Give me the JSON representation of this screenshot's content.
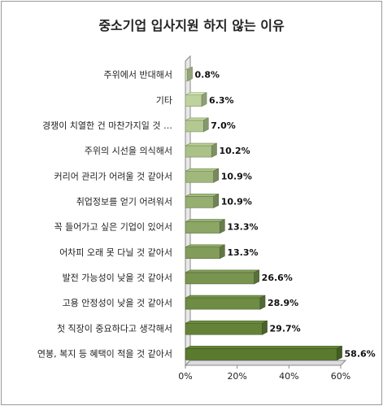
{
  "chart_data": {
    "type": "bar",
    "orientation": "horizontal",
    "title": "중소기업 입사지원 하지 않는 이유",
    "categories": [
      "주위에서 반대해서",
      "기타",
      "경쟁이 치열한 건 마찬가지일 것 …",
      "주위의 시선을 의식해서",
      "커리어 관리가 어려울 것 같아서",
      "취업정보를 얻기 어려워서",
      "꼭 들어가고 싶은 기업이 있어서",
      "어차피 오래 못 다닐 것 같아서",
      "발전 가능성이 낮을 것 같아서",
      "고용 안정성이 낮을 것 같아서",
      "첫 직장이 중요하다고 생각해서",
      "연봉, 복지 등 혜택이 적을 것 같아서"
    ],
    "values": [
      0.8,
      6.3,
      7.0,
      10.2,
      10.9,
      10.9,
      13.3,
      13.3,
      26.6,
      28.9,
      29.7,
      58.6
    ],
    "value_labels": [
      "0.8%",
      "6.3%",
      "7.0%",
      "10.2%",
      "10.9%",
      "10.9%",
      "13.3%",
      "13.3%",
      "26.6%",
      "28.9%",
      "29.7%",
      "58.6%"
    ],
    "xlim": [
      0,
      60
    ],
    "x_ticks": [
      "0%",
      "20%",
      "40%",
      "60%"
    ],
    "colors": {
      "bar_light": "#c8dba8",
      "bar_dark": "#5a7a2e",
      "axis": "#888888"
    }
  }
}
